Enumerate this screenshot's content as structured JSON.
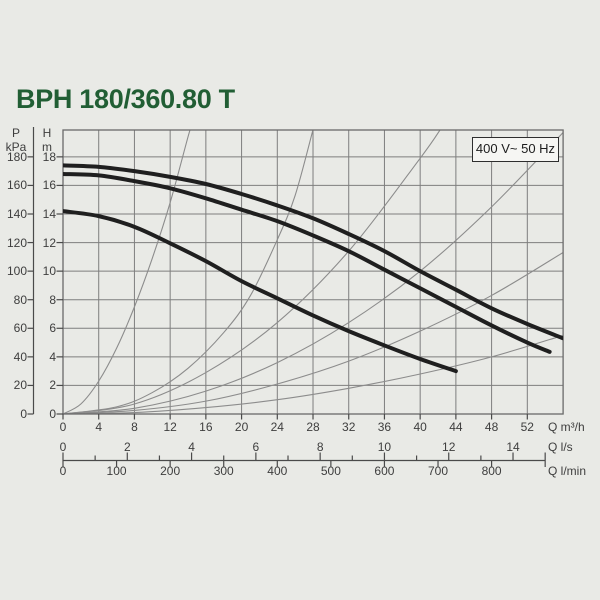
{
  "page": {
    "background": "#e9eae6"
  },
  "header": {
    "title": "BPH 180/360.80 T",
    "title_color": "#215e34"
  },
  "chart": {
    "voltage_badge": "400 V~ 50 Hz",
    "pressure_axis": {
      "symbol": "P",
      "unit": "kPa",
      "ticks": [
        180,
        160,
        140,
        120,
        100,
        80,
        60,
        40,
        20,
        0
      ]
    },
    "head_axis": {
      "symbol": "H",
      "unit": "m",
      "ticks": [
        18,
        16,
        14,
        12,
        10,
        8,
        6,
        4,
        2,
        0
      ]
    },
    "flow_axis_m3h": {
      "unit_label": "Q m³/h",
      "ticks": [
        0,
        4,
        8,
        12,
        16,
        20,
        24,
        28,
        32,
        36,
        40,
        44,
        48,
        52
      ]
    },
    "flow_axis_ls": {
      "unit_label": "Q l/s",
      "ticks": [
        0,
        2,
        4,
        6,
        8,
        10,
        12,
        14
      ]
    },
    "flow_axis_lmin": {
      "unit_label": "Q l/min",
      "ticks": [
        0,
        100,
        200,
        300,
        400,
        500,
        600,
        700,
        800
      ]
    }
  },
  "chart_data": {
    "type": "line",
    "title": "BPH 180/360.80 T",
    "annotation": "400 V~ 50 Hz",
    "xlabel": "Q flow (m³/h, l/s, l/min)",
    "ylabel": "H head (m) / P pressure (kPa)",
    "xlim": [
      0,
      56
    ],
    "ylim": [
      0,
      19.9
    ],
    "grid": true,
    "x_gridline_step_m3h": 4,
    "y_gridline_step_m": 2,
    "unit_relations": {
      "m3h_per_ls": 3.6,
      "m3h_per_lmin": 0.06,
      "kpa_per_m": 10
    },
    "series": [
      {
        "name": "pump-curve-speed-3-max",
        "color": "#1f1f1f",
        "width": 4,
        "points": [
          [
            0,
            17.4
          ],
          [
            4,
            17.3
          ],
          [
            8,
            17.0
          ],
          [
            12,
            16.6
          ],
          [
            16,
            16.1
          ],
          [
            20,
            15.4
          ],
          [
            24,
            14.6
          ],
          [
            28,
            13.7
          ],
          [
            32,
            12.6
          ],
          [
            36,
            11.4
          ],
          [
            40,
            10.0
          ],
          [
            44,
            8.7
          ],
          [
            48,
            7.4
          ],
          [
            52,
            6.3
          ],
          [
            56,
            5.3
          ]
        ]
      },
      {
        "name": "pump-curve-speed-2",
        "color": "#1f1f1f",
        "width": 4,
        "points": [
          [
            0,
            16.8
          ],
          [
            4,
            16.7
          ],
          [
            8,
            16.3
          ],
          [
            12,
            15.8
          ],
          [
            16,
            15.1
          ],
          [
            20,
            14.3
          ],
          [
            24,
            13.5
          ],
          [
            28,
            12.5
          ],
          [
            32,
            11.4
          ],
          [
            36,
            10.1
          ],
          [
            40,
            8.8
          ],
          [
            44,
            7.5
          ],
          [
            48,
            6.2
          ],
          [
            52,
            5.0
          ],
          [
            54.5,
            4.35
          ]
        ]
      },
      {
        "name": "pump-curve-speed-1",
        "color": "#1f1f1f",
        "width": 4,
        "points": [
          [
            0,
            14.2
          ],
          [
            4,
            13.85
          ],
          [
            8,
            13.1
          ],
          [
            12,
            11.95
          ],
          [
            16,
            10.7
          ],
          [
            20,
            9.3
          ],
          [
            24,
            8.1
          ],
          [
            28,
            6.9
          ],
          [
            32,
            5.8
          ],
          [
            36,
            4.8
          ],
          [
            40,
            3.85
          ],
          [
            44,
            3.0
          ]
        ]
      }
    ],
    "system_curves": [
      {
        "name": "system-curve-1",
        "points": [
          [
            0,
            0
          ],
          [
            2,
            0.7
          ],
          [
            4,
            2.3
          ],
          [
            6,
            4.6
          ],
          [
            8,
            7.5
          ],
          [
            10,
            10.9
          ],
          [
            12,
            14.8
          ],
          [
            14,
            19.4
          ],
          [
            14.3,
            19.95
          ]
        ]
      },
      {
        "name": "system-curve-2",
        "points": [
          [
            0,
            0
          ],
          [
            6,
            0.5
          ],
          [
            10,
            1.5
          ],
          [
            14,
            3.2
          ],
          [
            18,
            5.7
          ],
          [
            21,
            8.3
          ],
          [
            24,
            12.2
          ],
          [
            26,
            15.3
          ],
          [
            28,
            19.9
          ]
        ]
      },
      {
        "name": "system-curve-3",
        "points": [
          [
            0,
            0
          ],
          [
            8,
            0.7
          ],
          [
            16,
            2.9
          ],
          [
            24,
            6.4
          ],
          [
            32,
            11.4
          ],
          [
            40,
            17.9
          ],
          [
            42.3,
            19.95
          ]
        ]
      },
      {
        "name": "system-curve-4",
        "points": [
          [
            0,
            0
          ],
          [
            8,
            0.4
          ],
          [
            16,
            1.6
          ],
          [
            24,
            3.6
          ],
          [
            32,
            6.4
          ],
          [
            40,
            10.0
          ],
          [
            48,
            14.5
          ],
          [
            56,
            19.7
          ]
        ]
      },
      {
        "name": "system-curve-5",
        "points": [
          [
            0,
            0
          ],
          [
            8,
            0.25
          ],
          [
            16,
            0.9
          ],
          [
            24,
            2.1
          ],
          [
            32,
            3.7
          ],
          [
            40,
            5.8
          ],
          [
            48,
            8.3
          ],
          [
            56,
            11.3
          ]
        ]
      },
      {
        "name": "system-curve-6",
        "points": [
          [
            0,
            0
          ],
          [
            8,
            0.1
          ],
          [
            16,
            0.45
          ],
          [
            24,
            1.0
          ],
          [
            32,
            1.8
          ],
          [
            40,
            2.8
          ],
          [
            48,
            4.0
          ],
          [
            56,
            5.5
          ]
        ]
      }
    ],
    "style": {
      "grid_color": "#7e7e7e",
      "frame_color": "#6a6a6a",
      "tick_color": "#4a4a4a",
      "system_curve_color": "#8c8c8c",
      "pump_curve_color": "#1f1f1f"
    }
  }
}
